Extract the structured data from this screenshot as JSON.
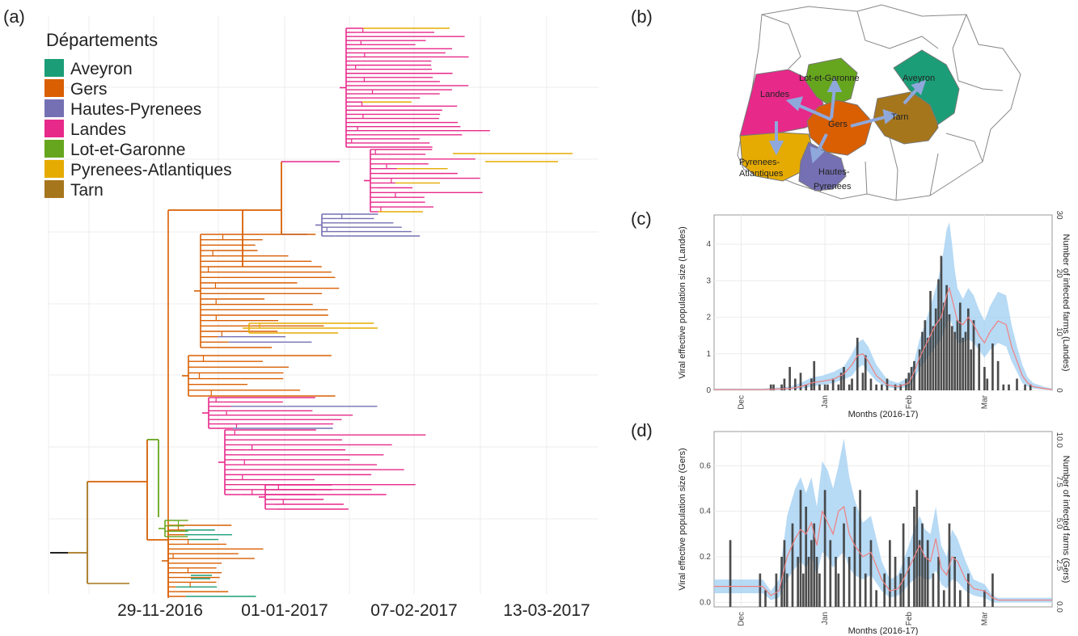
{
  "panels": {
    "a": "(a)",
    "b": "(b)",
    "c": "(c)",
    "d": "(d)"
  },
  "legend": {
    "title": "Départements",
    "items": [
      {
        "label": "Aveyron",
        "color": "#1b9e77"
      },
      {
        "label": "Gers",
        "color": "#d95f02"
      },
      {
        "label": "Hautes-Pyrenees",
        "color": "#7570b3"
      },
      {
        "label": "Landes",
        "color": "#e7298a"
      },
      {
        "label": "Lot-et-Garonne",
        "color": "#66a61e"
      },
      {
        "label": "Pyrenees-Atlantiques",
        "color": "#e6ab02"
      },
      {
        "label": "Tarn",
        "color": "#a6761d"
      }
    ]
  },
  "tree_dates": [
    "29-11-2016",
    "01-01-2017",
    "07-02-2017",
    "13-03-2017"
  ],
  "map": {
    "labels": {
      "landes": "Landes",
      "lot_et_garonne": "Lot-et-Garonne",
      "aveyron": "Aveyron",
      "gers": "Gers",
      "tarn": "Tarn",
      "pyr_atl_1": "Pyrenees-",
      "pyr_atl_2": "Atlantiques",
      "hautes_pyr_1": "Hautes-",
      "hautes_pyr_2": "Pyrenees"
    }
  },
  "chart_data": [
    {
      "type": "bar",
      "panel": "c",
      "xlabel": "Months (2016-17)",
      "ylabel": "Viral effective population size (Landes)",
      "ylabel_right": "Number of infected farms (Landes)",
      "x_ticks": [
        "Dec",
        "Jan",
        "Feb",
        "Mar"
      ],
      "y_left_ticks": [
        "0",
        "1",
        "2",
        "3",
        "4"
      ],
      "y_right_ticks": [
        "0",
        "10",
        "20",
        "30"
      ],
      "ylim": [
        0,
        4.8
      ],
      "ylim_right": [
        0,
        30
      ],
      "x_range_days": [
        -10,
        115
      ],
      "bars_days": [
        11,
        12,
        15,
        16,
        18,
        20,
        22,
        24,
        26,
        27,
        29,
        31,
        32,
        34,
        36,
        37,
        38,
        40,
        41,
        43,
        45,
        46,
        48,
        50,
        52,
        54,
        57,
        59,
        61,
        62,
        63,
        64,
        66,
        67,
        68,
        69,
        70,
        71,
        72,
        73,
        74,
        75,
        76,
        77,
        78,
        79,
        80,
        81,
        82,
        83,
        84,
        85,
        86,
        88,
        90,
        91,
        93,
        95,
        97,
        99,
        102,
        105,
        107
      ],
      "bars_counts": [
        1,
        1,
        1,
        2,
        4,
        2,
        3,
        1,
        2,
        5,
        1,
        1,
        1,
        2,
        1,
        3,
        4,
        1,
        2,
        9,
        3,
        6,
        2,
        1,
        1,
        2,
        1,
        1,
        2,
        3,
        4,
        5,
        7,
        10,
        12,
        9,
        17,
        11,
        14,
        19,
        23,
        15,
        18,
        13,
        11,
        10,
        12,
        15,
        9,
        10,
        14,
        7,
        12,
        8,
        4,
        2,
        8,
        5,
        1,
        1,
        2,
        1,
        1
      ],
      "ne_days": [
        -10,
        8,
        18,
        22,
        26,
        30,
        34,
        38,
        41,
        43,
        45,
        47,
        50,
        54,
        58,
        62,
        64,
        66,
        68,
        70,
        72,
        74,
        75,
        76,
        77,
        78,
        79,
        80,
        82,
        84,
        86,
        88,
        90,
        92,
        95,
        98,
        100,
        102,
        104,
        106,
        108,
        112,
        115
      ],
      "ne_median": [
        0.02,
        0.02,
        0.05,
        0.1,
        0.2,
        0.25,
        0.3,
        0.45,
        0.7,
        0.95,
        1.0,
        0.8,
        0.4,
        0.15,
        0.1,
        0.2,
        0.5,
        0.9,
        1.2,
        1.5,
        1.8,
        2.0,
        2.3,
        2.6,
        2.8,
        2.5,
        2.2,
        1.9,
        1.8,
        2.0,
        1.8,
        1.5,
        1.3,
        1.6,
        1.9,
        1.8,
        1.2,
        0.8,
        0.4,
        0.2,
        0.1,
        0.05,
        0.02
      ],
      "ne_lower": [
        0.0,
        0.0,
        0.02,
        0.04,
        0.1,
        0.15,
        0.2,
        0.3,
        0.4,
        0.6,
        0.7,
        0.5,
        0.25,
        0.08,
        0.05,
        0.1,
        0.3,
        0.6,
        0.8,
        1.0,
        1.2,
        1.4,
        1.6,
        1.8,
        2.0,
        1.8,
        1.5,
        1.3,
        1.3,
        1.4,
        1.3,
        1.1,
        0.9,
        1.1,
        1.3,
        1.2,
        0.8,
        0.5,
        0.2,
        0.1,
        0.05,
        0.02,
        0.0
      ],
      "ne_upper": [
        0.05,
        0.05,
        0.1,
        0.2,
        0.35,
        0.4,
        0.5,
        0.65,
        1.0,
        1.3,
        1.4,
        1.2,
        0.7,
        0.3,
        0.2,
        0.35,
        0.8,
        1.4,
        1.8,
        2.3,
        2.8,
        3.4,
        3.9,
        4.4,
        4.6,
        4.0,
        3.3,
        2.8,
        2.5,
        2.8,
        2.6,
        2.2,
        1.9,
        2.3,
        2.7,
        2.6,
        1.8,
        1.2,
        0.7,
        0.35,
        0.2,
        0.1,
        0.05
      ]
    },
    {
      "type": "bar",
      "panel": "d",
      "xlabel": "Months (2016-17)",
      "ylabel": "Viral effective population size (Gers)",
      "ylabel_right": "Number of infected farms (Gers)",
      "x_ticks": [
        "Dec",
        "Jan",
        "Feb",
        "Mar"
      ],
      "y_left_ticks": [
        "0.0",
        "0.2",
        "0.4",
        "0.6"
      ],
      "y_right_ticks": [
        "0.0",
        "2.5",
        "5.0",
        "7.5",
        "10.0"
      ],
      "ylim": [
        -0.02,
        0.75
      ],
      "ylim_right": [
        0,
        10.5
      ],
      "x_range_days": [
        -10,
        115
      ],
      "bars_days": [
        -4,
        7,
        9,
        13,
        15,
        16,
        17,
        19,
        21,
        22,
        23,
        24,
        25,
        26,
        27,
        28,
        29,
        31,
        33,
        35,
        36,
        38,
        40,
        42,
        44,
        46,
        48,
        50,
        53,
        55,
        57,
        59,
        60,
        62,
        64,
        65,
        66,
        67,
        68,
        69,
        71,
        73,
        75,
        77,
        79,
        81,
        84,
        90,
        93
      ],
      "bars_counts": [
        4,
        2,
        1,
        2,
        3,
        4,
        2,
        5,
        3,
        7,
        2,
        6,
        3,
        4,
        5,
        3,
        2,
        7,
        4,
        3,
        2,
        5,
        3,
        6,
        7,
        2,
        4,
        1,
        2,
        4,
        3,
        2,
        5,
        3,
        6,
        7,
        4,
        5,
        3,
        4,
        2,
        3,
        1,
        5,
        3,
        1,
        2,
        1,
        2
      ],
      "ne_days": [
        -10,
        8,
        11,
        14,
        17,
        20,
        22,
        24,
        26,
        28,
        30,
        32,
        34,
        36,
        38,
        40,
        42,
        45,
        48,
        52,
        55,
        58,
        60,
        62,
        64,
        66,
        68,
        70,
        72,
        74,
        76,
        78,
        80,
        83,
        86,
        90,
        93,
        95,
        100,
        115
      ],
      "ne_median": [
        0.07,
        0.07,
        0.03,
        0.05,
        0.2,
        0.28,
        0.32,
        0.3,
        0.35,
        0.25,
        0.4,
        0.35,
        0.3,
        0.4,
        0.42,
        0.3,
        0.25,
        0.2,
        0.22,
        0.1,
        0.05,
        0.06,
        0.1,
        0.15,
        0.2,
        0.25,
        0.2,
        0.18,
        0.28,
        0.15,
        0.12,
        0.2,
        0.18,
        0.1,
        0.06,
        0.05,
        0.02,
        0.01,
        0.01,
        0.01
      ],
      "ne_lower": [
        0.04,
        0.04,
        0.01,
        0.02,
        0.1,
        0.15,
        0.18,
        0.15,
        0.2,
        0.12,
        0.22,
        0.2,
        0.15,
        0.2,
        0.22,
        0.15,
        0.12,
        0.1,
        0.12,
        0.05,
        0.02,
        0.03,
        0.05,
        0.08,
        0.1,
        0.12,
        0.1,
        0.1,
        0.14,
        0.08,
        0.06,
        0.1,
        0.09,
        0.05,
        0.03,
        0.02,
        0.0,
        0.0,
        0.0,
        0.0
      ],
      "ne_upper": [
        0.1,
        0.1,
        0.05,
        0.1,
        0.38,
        0.5,
        0.55,
        0.48,
        0.55,
        0.42,
        0.62,
        0.58,
        0.5,
        0.6,
        0.72,
        0.55,
        0.45,
        0.35,
        0.38,
        0.18,
        0.1,
        0.12,
        0.18,
        0.25,
        0.32,
        0.38,
        0.32,
        0.3,
        0.42,
        0.25,
        0.2,
        0.32,
        0.28,
        0.18,
        0.1,
        0.08,
        0.03,
        0.02,
        0.02,
        0.02
      ]
    }
  ]
}
